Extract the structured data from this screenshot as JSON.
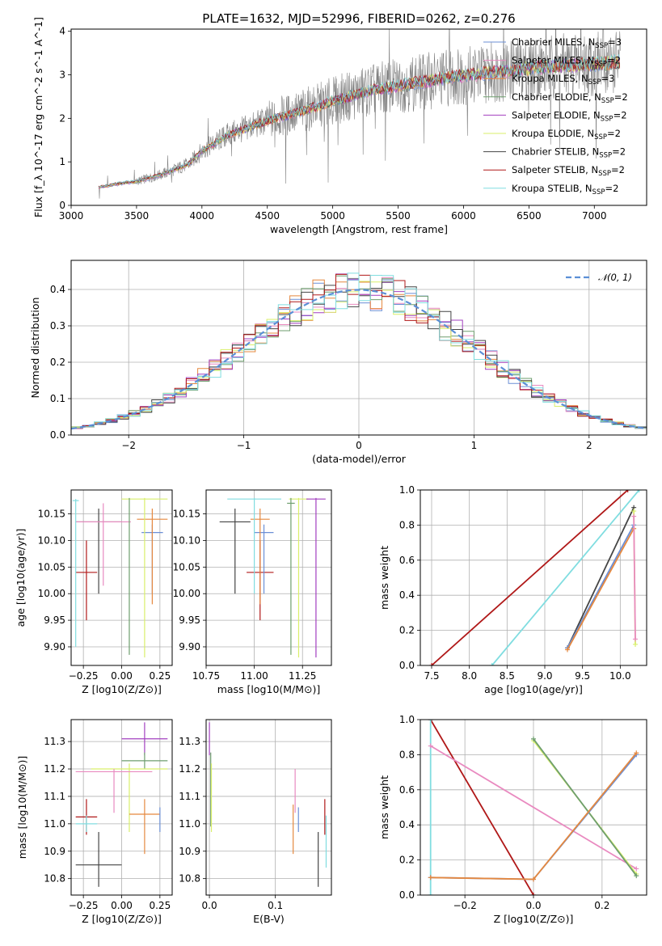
{
  "colors": {
    "chabrier_miles": "#6b8fd6",
    "salpeter_miles": "#e98ac0",
    "kroupa_miles": "#e5883f",
    "chabrier_elodie": "#6e9e6e",
    "salpeter_elodie": "#a23fbf",
    "kroupa_elodie": "#d9ef6a",
    "chabrier_stelib": "#444444",
    "salpeter_stelib": "#b01818",
    "kroupa_stelib": "#80dde0",
    "data": "#808080",
    "gaussian": "#5b8fd6",
    "grid": "#b0b0b0"
  },
  "chart_data": [
    {
      "id": "spectrum",
      "type": "line",
      "title": "PLATE=1632, MJD=52996, FIBERID=0262, z=0.276",
      "xlabel": "wavelength [Angstrom, rest frame]",
      "ylabel": "Flux [f_λ 10^-17 erg cm^-2 s^-1 A^-1]",
      "xlim": [
        3000,
        7400
      ],
      "ylim": [
        0,
        4.05
      ],
      "xticks": [
        "3000",
        "3500",
        "4000",
        "4500",
        "5000",
        "5500",
        "6000",
        "6500",
        "7000"
      ],
      "yticks": [
        "0",
        "1",
        "2",
        "3",
        "4"
      ],
      "legend_position": "upper right",
      "legend": [
        {
          "label": "Chabrier MILES, N",
          "sub": "SSP",
          "suffix": "=3",
          "color_key": "chabrier_miles"
        },
        {
          "label": "Salpeter MILES, N",
          "sub": "SSP",
          "suffix": "=2",
          "color_key": "salpeter_miles"
        },
        {
          "label": "Kroupa MILES, N",
          "sub": "SSP",
          "suffix": "=3",
          "color_key": "kroupa_miles"
        },
        {
          "label": "Chabrier ELODIE, N",
          "sub": "SSP",
          "suffix": "=2",
          "color_key": "chabrier_elodie"
        },
        {
          "label": "Salpeter ELODIE, N",
          "sub": "SSP",
          "suffix": "=2",
          "color_key": "salpeter_elodie"
        },
        {
          "label": "Kroupa ELODIE, N",
          "sub": "SSP",
          "suffix": "=2",
          "color_key": "kroupa_elodie"
        },
        {
          "label": "Chabrier STELIB, N",
          "sub": "SSP",
          "suffix": "=2",
          "color_key": "chabrier_stelib"
        },
        {
          "label": "Salpeter STELIB, N",
          "sub": "SSP",
          "suffix": "=2",
          "color_key": "salpeter_stelib"
        },
        {
          "label": "Kroupa STELIB, N",
          "sub": "SSP",
          "suffix": "=2",
          "color_key": "kroupa_stelib"
        }
      ],
      "continuum": {
        "x": [
          3210,
          3400,
          3500,
          3700,
          3900,
          4000,
          4200,
          4500,
          4800,
          5000,
          5300,
          5600,
          5900,
          6200,
          6500,
          6800,
          7000,
          7200
        ],
        "y": [
          0.42,
          0.52,
          0.55,
          0.72,
          0.95,
          1.25,
          1.62,
          1.95,
          2.2,
          2.4,
          2.65,
          2.8,
          2.95,
          3.05,
          3.15,
          3.22,
          3.25,
          3.3
        ]
      },
      "noise_amplitude_pct": 18
    },
    {
      "id": "residuals",
      "type": "step",
      "xlabel": "(data-model)/error",
      "ylabel": "Normed distribution",
      "xlim": [
        -2.5,
        2.5
      ],
      "ylim": [
        0,
        0.48
      ],
      "xticks": [
        "−2",
        "−1",
        "0",
        "1",
        "2"
      ],
      "yticks": [
        "0.0",
        "0.1",
        "0.2",
        "0.3",
        "0.4"
      ],
      "legend": [
        {
          "label": "𝒩(0, 1)",
          "color_key": "gaussian",
          "style": "dashed"
        }
      ],
      "legend_position": "upper right",
      "bin_width": 0.1,
      "histogram_note": "nine step histograms, one per model, scattered about the standard normal density"
    },
    {
      "id": "age_vs_Z",
      "type": "errorbar",
      "xlabel": "Z [log10(Z/Z⊙)]",
      "ylabel": "age [log10(age/yr)]",
      "xlim": [
        -0.33,
        0.33
      ],
      "ylim": [
        9.865,
        10.195
      ],
      "xticks": [
        "−0.25",
        "0.00",
        "0.25"
      ],
      "yticks": [
        "9.90",
        "9.95",
        "10.00",
        "10.05",
        "10.10",
        "10.15"
      ],
      "points": [
        {
          "key": "chabrier_stelib",
          "x": -0.15,
          "xerr": 0.15,
          "y": 10.135,
          "ylo": 10.0,
          "yhi": 10.16
        },
        {
          "key": "salpeter_stelib",
          "x": -0.23,
          "xerr": 0.07,
          "y": 10.04,
          "ylo": 9.95,
          "yhi": 10.1
        },
        {
          "key": "salpeter_miles",
          "x": -0.12,
          "xerr": 0.18,
          "y": 10.135,
          "ylo": 10.015,
          "yhi": 10.17
        },
        {
          "key": "kroupa_stelib",
          "x": -0.3,
          "xerr": 0.02,
          "y": 10.175,
          "ylo": 9.9,
          "yhi": 10.178
        },
        {
          "key": "chabrier_miles",
          "x": 0.2,
          "xerr": 0.07,
          "y": 10.115,
          "ylo": 10.0,
          "yhi": 10.13
        },
        {
          "key": "kroupa_miles",
          "x": 0.2,
          "xerr": 0.1,
          "y": 10.14,
          "ylo": 9.98,
          "yhi": 10.16
        },
        {
          "key": "kroupa_elodie",
          "x": 0.15,
          "xerr": 0.15,
          "y": 10.178,
          "ylo": 9.88,
          "yhi": 10.18
        },
        {
          "key": "chabrier_elodie",
          "x": 0.05,
          "xerr": 0.0,
          "y": 10.17,
          "ylo": 9.885,
          "yhi": 10.18
        }
      ]
    },
    {
      "id": "age_vs_mass",
      "type": "errorbar",
      "xlabel": "mass [log10(M/M⊙)]",
      "ylabel": "",
      "xlim": [
        10.75,
        11.4
      ],
      "ylim": [
        9.865,
        10.195
      ],
      "xticks": [
        "10.75",
        "11.00",
        "11.25"
      ],
      "yticks": [
        "9.90",
        "9.95",
        "10.00",
        "10.05",
        "10.10",
        "10.15"
      ],
      "points": [
        {
          "key": "chabrier_stelib",
          "x": 10.9,
          "xerr": 0.08,
          "y": 10.135,
          "ylo": 10.0,
          "yhi": 10.16
        },
        {
          "key": "salpeter_stelib",
          "x": 11.03,
          "xerr": 0.07,
          "y": 10.04,
          "ylo": 9.95,
          "yhi": 10.1
        },
        {
          "key": "chabrier_miles",
          "x": 11.05,
          "xerr": 0.05,
          "y": 10.115,
          "ylo": 10.0,
          "yhi": 10.13
        },
        {
          "key": "kroupa_miles",
          "x": 11.03,
          "xerr": 0.05,
          "y": 10.14,
          "ylo": 9.98,
          "yhi": 10.16
        },
        {
          "key": "kroupa_stelib",
          "x": 11.0,
          "xerr": 0.14,
          "y": 10.178,
          "ylo": 10.0,
          "yhi": 10.18
        },
        {
          "key": "kroupa_elodie",
          "x": 11.23,
          "xerr": 0.05,
          "y": 10.178,
          "ylo": 9.88,
          "yhi": 10.18
        },
        {
          "key": "chabrier_elodie",
          "x": 11.19,
          "xerr": 0.02,
          "y": 10.17,
          "ylo": 9.885,
          "yhi": 10.18
        },
        {
          "key": "salpeter_elodie",
          "x": 11.32,
          "xerr": 0.05,
          "y": 10.178,
          "ylo": 9.88,
          "yhi": 10.18
        }
      ]
    },
    {
      "id": "weight_vs_age",
      "type": "line",
      "xlabel": "age [log10(age/yr)]",
      "ylabel": "mass weight",
      "xlim": [
        7.35,
        10.35
      ],
      "ylim": [
        0,
        1
      ],
      "xticks": [
        "7.5",
        "8.0",
        "8.5",
        "9.0",
        "9.5",
        "10.0"
      ],
      "yticks": [
        "0.0",
        "0.2",
        "0.4",
        "0.6",
        "0.8",
        "1.0"
      ],
      "series": [
        {
          "key": "salpeter_stelib",
          "x": [
            7.5,
            10.1
          ],
          "y": [
            0.0,
            1.0
          ]
        },
        {
          "key": "kroupa_stelib",
          "x": [
            8.3,
            10.25
          ],
          "y": [
            0.0,
            1.0
          ]
        },
        {
          "key": "chabrier_stelib",
          "x": [
            9.3,
            10.18
          ],
          "y": [
            0.1,
            0.9
          ]
        },
        {
          "key": "chabrier_miles",
          "x": [
            9.3,
            10.18
          ],
          "y": [
            0.1,
            0.8
          ]
        },
        {
          "key": "kroupa_miles",
          "x": [
            9.3,
            10.18
          ],
          "y": [
            0.09,
            0.78
          ]
        },
        {
          "key": "kroupa_elodie",
          "x": [
            10.18,
            10.2
          ],
          "y": [
            0.88,
            0.12
          ]
        },
        {
          "key": "salpeter_miles",
          "x": [
            10.18,
            10.2
          ],
          "y": [
            0.85,
            0.15
          ]
        }
      ]
    },
    {
      "id": "mass_vs_Z",
      "type": "errorbar",
      "xlabel": "Z [log10(Z/Z⊙)]",
      "ylabel": "mass [log10(M/M⊙)]",
      "xlim": [
        -0.33,
        0.33
      ],
      "ylim": [
        10.74,
        11.38
      ],
      "xticks": [
        "−0.25",
        "0.00",
        "0.25"
      ],
      "yticks": [
        "10.8",
        "10.9",
        "11.0",
        "11.1",
        "11.2",
        "11.3"
      ],
      "points": [
        {
          "key": "salpeter_elodie",
          "x": 0.15,
          "xerr": 0.15,
          "y": 11.31,
          "ylo": 11.25,
          "yhi": 11.37
        },
        {
          "key": "chabrier_elodie",
          "x": 0.15,
          "xerr": 0.15,
          "y": 11.23,
          "ylo": 11.2,
          "yhi": 11.26
        },
        {
          "key": "kroupa_elodie",
          "x": 0.05,
          "xerr": 0.25,
          "y": 11.2,
          "ylo": 10.97,
          "yhi": 11.22
        },
        {
          "key": "salpeter_miles",
          "x": -0.05,
          "xerr": 0.25,
          "y": 11.19,
          "ylo": 11.04,
          "yhi": 11.2
        },
        {
          "key": "salpeter_stelib",
          "x": -0.23,
          "xerr": 0.07,
          "y": 11.025,
          "ylo": 10.96,
          "yhi": 11.09
        },
        {
          "key": "kroupa_stelib",
          "x": -0.23,
          "xerr": 0.07,
          "y": 11.0,
          "ylo": 10.97,
          "yhi": 11.03
        },
        {
          "key": "chabrier_stelib",
          "x": -0.15,
          "xerr": 0.15,
          "y": 10.85,
          "ylo": 10.77,
          "yhi": 10.97
        },
        {
          "key": "kroupa_miles",
          "x": 0.15,
          "xerr": 0.1,
          "y": 11.035,
          "ylo": 10.89,
          "yhi": 11.09
        },
        {
          "key": "chabrier_miles",
          "x": 0.25,
          "xerr": 0.0,
          "y": 11.035,
          "ylo": 10.97,
          "yhi": 11.06
        }
      ]
    },
    {
      "id": "mass_vs_ebv",
      "type": "errorbar",
      "xlabel": "E(B-V)",
      "ylabel": "",
      "xlim": [
        -0.005,
        0.185
      ],
      "ylim": [
        10.74,
        11.38
      ],
      "xticks": [
        "0.0",
        "0.1"
      ],
      "yticks": [
        "10.8",
        "10.9",
        "11.0",
        "11.1",
        "11.2",
        "11.3"
      ],
      "points": [
        {
          "key": "salpeter_elodie",
          "x": 0.0,
          "xerr": 0.0,
          "y": 11.31,
          "ylo": 11.25,
          "yhi": 11.37
        },
        {
          "key": "chabrier_elodie",
          "x": 0.002,
          "xerr": 0.0,
          "y": 11.23,
          "ylo": 10.99,
          "yhi": 11.26
        },
        {
          "key": "kroupa_elodie",
          "x": 0.003,
          "xerr": 0.0,
          "y": 11.1,
          "ylo": 10.97,
          "yhi": 11.22
        },
        {
          "key": "salpeter_miles",
          "x": 0.13,
          "xerr": 0.0,
          "y": 11.1,
          "ylo": 11.04,
          "yhi": 11.2
        },
        {
          "key": "kroupa_miles",
          "x": 0.127,
          "xerr": 0.0,
          "y": 11.0,
          "ylo": 10.89,
          "yhi": 11.07
        },
        {
          "key": "chabrier_miles",
          "x": 0.135,
          "xerr": 0.0,
          "y": 11.03,
          "ylo": 10.97,
          "yhi": 11.06
        },
        {
          "key": "chabrier_stelib",
          "x": 0.165,
          "xerr": 0.0,
          "y": 10.87,
          "ylo": 10.77,
          "yhi": 10.97
        },
        {
          "key": "salpeter_stelib",
          "x": 0.175,
          "xerr": 0.0,
          "y": 11.03,
          "ylo": 10.96,
          "yhi": 11.09
        },
        {
          "key": "kroupa_stelib",
          "x": 0.177,
          "xerr": 0.0,
          "y": 10.9,
          "ylo": 10.84,
          "yhi": 11.03
        }
      ]
    },
    {
      "id": "weight_vs_Z",
      "type": "line",
      "xlabel": "Z [log10(Z/Z⊙)]",
      "ylabel": "mass weight",
      "xlim": [
        -0.33,
        0.33
      ],
      "ylim": [
        0,
        1
      ],
      "xticks": [
        "−0.2",
        "0.0",
        "0.2"
      ],
      "yticks": [
        "0.0",
        "0.2",
        "0.4",
        "0.6",
        "0.8",
        "1.0"
      ],
      "series": [
        {
          "key": "salpeter_stelib",
          "x": [
            -0.3,
            0.0
          ],
          "y": [
            1.0,
            0.0
          ]
        },
        {
          "key": "kroupa_stelib",
          "x": [
            -0.3,
            -0.3
          ],
          "y": [
            0.0,
            1.0
          ]
        },
        {
          "key": "salpeter_miles",
          "x": [
            -0.3,
            0.3
          ],
          "y": [
            0.85,
            0.15
          ]
        },
        {
          "key": "kroupa_elodie",
          "x": [
            0.0,
            0.3
          ],
          "y": [
            0.88,
            0.12
          ]
        },
        {
          "key": "chabrier_elodie",
          "x": [
            0.0,
            0.3
          ],
          "y": [
            0.89,
            0.11
          ]
        },
        {
          "key": "chabrier_miles",
          "x": [
            -0.3,
            0.0,
            0.3
          ],
          "y": [
            0.1,
            0.09,
            0.8
          ]
        },
        {
          "key": "kroupa_miles",
          "x": [
            -0.3,
            0.0,
            0.3
          ],
          "y": [
            0.1,
            0.09,
            0.81
          ]
        }
      ]
    }
  ]
}
